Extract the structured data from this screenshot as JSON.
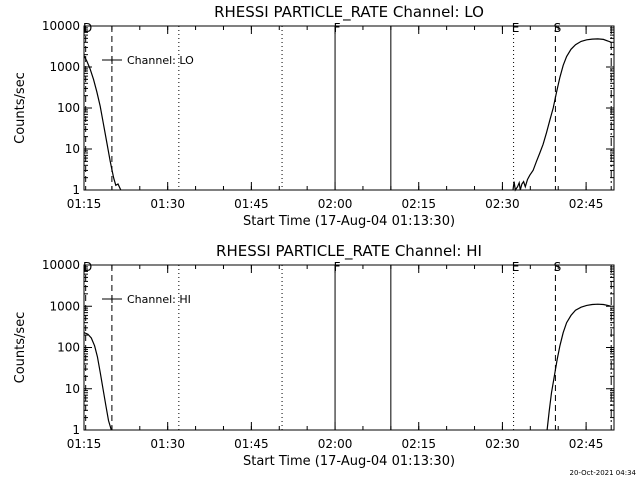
{
  "chart_data": [
    {
      "type": "line",
      "title": "RHESSI PARTICLE_RATE Channel: LO",
      "xlabel": "Start Time (17-Aug-04 01:13:30)",
      "ylabel": "Counts/sec",
      "y_scale": "log",
      "ylim": [
        1,
        10000
      ],
      "y_ticks": [
        "1",
        "10",
        "100",
        "1000",
        "10000"
      ],
      "x_unit": "minutes after 01:13:30",
      "xlim": [
        1.5,
        96.5
      ],
      "x_tick_labels": [
        "01:15",
        "01:30",
        "01:45",
        "02:00",
        "02:15",
        "02:30",
        "02:45"
      ],
      "x_tick_values": [
        1.5,
        16.5,
        31.5,
        46.5,
        61.5,
        76.5,
        91.5
      ],
      "legend": {
        "label": "Channel: LO",
        "position": "top-left"
      },
      "markers": [
        {
          "label": "D",
          "x": 1.8,
          "style": "dashed"
        },
        {
          "label": "",
          "x": 6.5,
          "style": "dashed"
        },
        {
          "label": "",
          "x": 18.5,
          "style": "dotted"
        },
        {
          "label": "",
          "x": 37.0,
          "style": "dotted"
        },
        {
          "label": "F",
          "x": 46.5,
          "style": "solid"
        },
        {
          "label": "",
          "x": 56.5,
          "style": "solid"
        },
        {
          "label": "E",
          "x": 78.5,
          "style": "dotted"
        },
        {
          "label": "S",
          "x": 86.0,
          "style": "dashed"
        },
        {
          "label": "",
          "x": 96.0,
          "style": "dashdot"
        }
      ],
      "series": [
        {
          "segments": [
            [
              [
                1.5,
                1900
              ],
              [
                2.0,
                1400
              ],
              [
                2.6,
                900
              ],
              [
                3.2,
                500
              ],
              [
                3.8,
                250
              ],
              [
                4.4,
                110
              ],
              [
                5.0,
                40
              ],
              [
                5.6,
                14
              ],
              [
                6.2,
                5
              ],
              [
                6.8,
                2
              ],
              [
                7.2,
                1.3
              ],
              [
                7.6,
                1.4
              ],
              [
                8.1,
                1
              ]
            ],
            [
              [
                78.4,
                1
              ],
              [
                78.6,
                1.6
              ],
              [
                78.8,
                1
              ],
              [
                79.2,
                1.2
              ],
              [
                79.5,
                1.5
              ],
              [
                79.7,
                1
              ],
              [
                80.0,
                1.4
              ],
              [
                80.3,
                1.6
              ],
              [
                80.6,
                1.2
              ],
              [
                81.0,
                1.8
              ],
              [
                81.4,
                2.3
              ],
              [
                82.0,
                3
              ],
              [
                82.6,
                5
              ],
              [
                83.2,
                8
              ],
              [
                83.8,
                13
              ],
              [
                84.4,
                25
              ],
              [
                85.0,
                50
              ],
              [
                85.6,
                100
              ],
              [
                86.2,
                240
              ],
              [
                86.8,
                560
              ],
              [
                87.4,
                1100
              ],
              [
                88.0,
                1800
              ],
              [
                88.8,
                2700
              ],
              [
                89.6,
                3500
              ],
              [
                90.6,
                4200
              ],
              [
                91.6,
                4600
              ],
              [
                92.6,
                4800
              ],
              [
                93.6,
                4850
              ],
              [
                94.6,
                4700
              ],
              [
                95.4,
                4300
              ],
              [
                96.0,
                4000
              ]
            ]
          ]
        }
      ]
    },
    {
      "type": "line",
      "title": "RHESSI PARTICLE_RATE Channel: HI",
      "xlabel": "Start Time (17-Aug-04 01:13:30)",
      "ylabel": "Counts/sec",
      "y_scale": "log",
      "ylim": [
        1,
        10000
      ],
      "y_ticks": [
        "1",
        "10",
        "100",
        "1000",
        "10000"
      ],
      "x_unit": "minutes after 01:13:30",
      "xlim": [
        1.5,
        96.5
      ],
      "x_tick_labels": [
        "01:15",
        "01:30",
        "01:45",
        "02:00",
        "02:15",
        "02:30",
        "02:45"
      ],
      "x_tick_values": [
        1.5,
        16.5,
        31.5,
        46.5,
        61.5,
        76.5,
        91.5
      ],
      "legend": {
        "label": "Channel: HI",
        "position": "top-left"
      },
      "markers": [
        {
          "label": "D",
          "x": 1.8,
          "style": "dashed"
        },
        {
          "label": "",
          "x": 6.5,
          "style": "dashed"
        },
        {
          "label": "",
          "x": 18.5,
          "style": "dotted"
        },
        {
          "label": "",
          "x": 37.0,
          "style": "dotted"
        },
        {
          "label": "F",
          "x": 46.5,
          "style": "solid"
        },
        {
          "label": "",
          "x": 56.5,
          "style": "solid"
        },
        {
          "label": "E",
          "x": 78.5,
          "style": "dotted"
        },
        {
          "label": "S",
          "x": 86.0,
          "style": "dashed"
        },
        {
          "label": "",
          "x": 96.0,
          "style": "dashdot"
        }
      ],
      "series": [
        {
          "segments": [
            [
              [
                1.5,
                230
              ],
              [
                2.2,
                210
              ],
              [
                2.8,
                170
              ],
              [
                3.4,
                110
              ],
              [
                3.9,
                60
              ],
              [
                4.4,
                25
              ],
              [
                4.9,
                10
              ],
              [
                5.4,
                4
              ],
              [
                5.9,
                1.7
              ],
              [
                6.4,
                1
              ]
            ],
            [
              [
                84.5,
                1
              ],
              [
                84.9,
                3
              ],
              [
                85.3,
                8
              ],
              [
                85.8,
                20
              ],
              [
                86.3,
                50
              ],
              [
                86.8,
                110
              ],
              [
                87.4,
                230
              ],
              [
                88.0,
                400
              ],
              [
                88.8,
                600
              ],
              [
                89.6,
                800
              ],
              [
                90.6,
                950
              ],
              [
                91.6,
                1050
              ],
              [
                92.6,
                1100
              ],
              [
                93.6,
                1120
              ],
              [
                94.6,
                1100
              ],
              [
                95.4,
                1050
              ],
              [
                96.0,
                1000
              ]
            ]
          ]
        }
      ]
    }
  ],
  "footer": {
    "timestamp": "20-Oct-2021 04:34"
  }
}
